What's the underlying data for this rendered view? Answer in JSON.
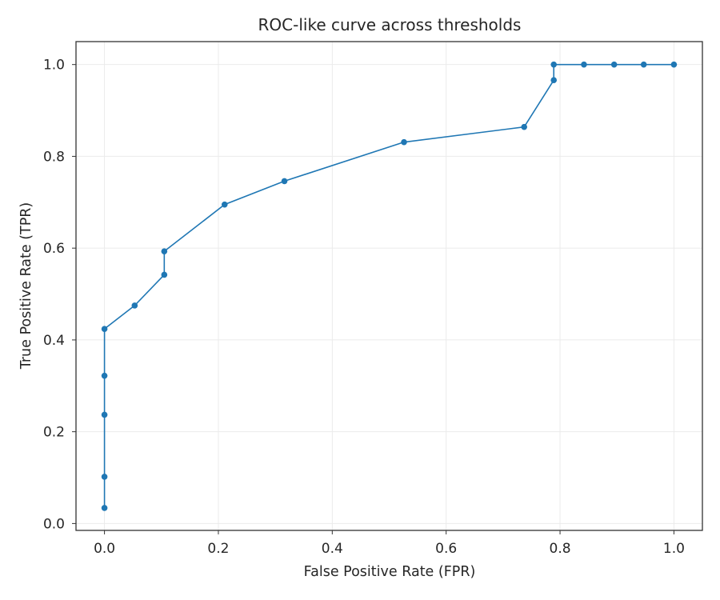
{
  "chart_data": {
    "type": "line",
    "title": "ROC-like curve across thresholds",
    "xlabel": "False Positive Rate (FPR)",
    "ylabel": "True Positive Rate (TPR)",
    "xlim": [
      -0.05,
      1.05
    ],
    "ylim": [
      -0.015,
      1.05
    ],
    "xticks": [
      "0.0",
      "0.2",
      "0.4",
      "0.6",
      "0.8",
      "1.0"
    ],
    "yticks": [
      "0.0",
      "0.2",
      "0.4",
      "0.6",
      "0.8",
      "1.0"
    ],
    "grid": true,
    "series": [
      {
        "color": "#1f77b4",
        "marker": "circle",
        "x": [
          0.0,
          0.0,
          0.0,
          0.0,
          0.0,
          0.053,
          0.105,
          0.105,
          0.211,
          0.316,
          0.526,
          0.737,
          0.789,
          0.789,
          0.842,
          0.895,
          0.947,
          1.0
        ],
        "y": [
          0.034,
          0.102,
          0.237,
          0.322,
          0.424,
          0.475,
          0.542,
          0.593,
          0.695,
          0.746,
          0.831,
          0.864,
          0.966,
          1.0,
          1.0,
          1.0,
          1.0,
          1.0
        ]
      }
    ]
  }
}
